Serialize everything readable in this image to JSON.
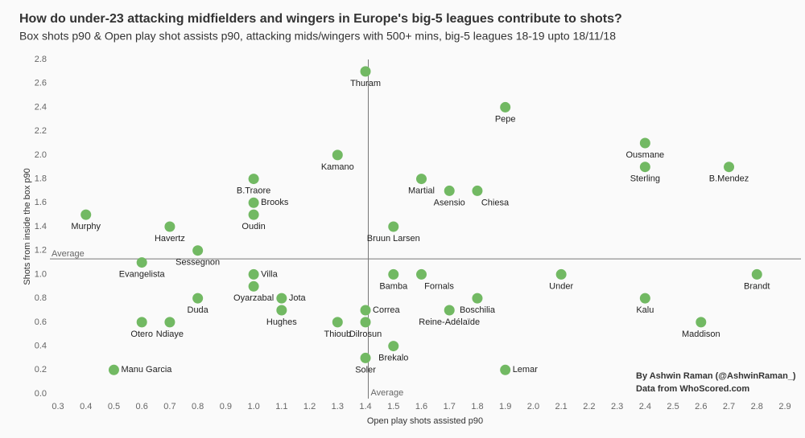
{
  "chart_data": {
    "type": "scatter",
    "title": "How do under-23 attacking midfielders and wingers in Europe's big-5 leagues contribute to shots?",
    "subtitle": "Box shots p90 & Open play shot assists p90, attacking mids/wingers with 500+ mins, big-5 leagues 18-19 upto 18/11/18",
    "x_label": "Open play shots assisted p90",
    "y_label": "Shots from inside the box p90",
    "color": "#72b963",
    "labels": [
      "Thuram",
      "Pepe",
      "Ousmane",
      "Sterling",
      "B.Mendez",
      "Kamano",
      "B.Traore",
      "Martial",
      "Asensio",
      "Chiesa",
      "Brooks",
      "Oudin",
      "Murphy",
      "Havertz",
      "Bruun Larsen",
      "Sessegnon",
      "Evangelista",
      "Villa",
      "Oyarzabal",
      "Bamba",
      "Fornals",
      "Under",
      "Brandt",
      "Duda",
      "Jota",
      "Hughes",
      "Boschilia",
      "Kalu",
      "Correa",
      "Reine-Adélaïde",
      "Otero",
      "Ndiaye",
      "Thioub",
      "Dilrosun",
      "Maddison",
      "Brekalo",
      "Soler",
      "Manu Garcia",
      "Lemar"
    ],
    "x": [
      1.4,
      1.9,
      2.4,
      2.4,
      2.7,
      1.3,
      1.0,
      1.6,
      1.7,
      1.8,
      1.0,
      1.0,
      0.4,
      0.7,
      1.5,
      0.8,
      0.6,
      1.0,
      1.0,
      1.5,
      1.6,
      2.1,
      2.8,
      0.8,
      1.1,
      1.1,
      1.8,
      2.4,
      1.4,
      1.7,
      0.6,
      0.7,
      1.3,
      1.4,
      2.6,
      1.5,
      1.4,
      0.5,
      1.9
    ],
    "values": [
      2.7,
      2.4,
      2.1,
      1.9,
      1.9,
      2.0,
      1.8,
      1.8,
      1.7,
      1.7,
      1.6,
      1.5,
      1.5,
      1.4,
      1.4,
      1.2,
      1.1,
      1.0,
      0.9,
      1.0,
      1.0,
      1.0,
      1.0,
      0.8,
      0.8,
      0.7,
      0.8,
      0.8,
      0.7,
      0.7,
      0.6,
      0.6,
      0.6,
      0.6,
      0.6,
      0.4,
      0.3,
      0.2,
      0.2
    ],
    "xlim": [
      0.3,
      2.9
    ],
    "ylim": [
      0,
      2.8
    ],
    "xticks": [
      0.3,
      0.4,
      0.5,
      0.6,
      0.7,
      0.8,
      0.9,
      {
        "value": 1,
        "label": "1.0"
      },
      1.1,
      1.2,
      1.3,
      1.4,
      1.5,
      1.6,
      1.7,
      1.8,
      1.9,
      {
        "value": 2,
        "label": "2.0"
      },
      2.1,
      2.2,
      2.3,
      2.4,
      2.5,
      2.6,
      2.7,
      2.8,
      2.9
    ],
    "yticks": [
      {
        "value": 0,
        "label": "0.0"
      },
      0.2,
      0.4,
      0.6,
      0.8,
      {
        "value": 1,
        "label": "1.0"
      },
      1.2,
      1.4,
      1.6,
      1.8,
      {
        "value": 2,
        "label": "2.0"
      },
      2.2,
      2.4,
      2.6,
      2.8
    ],
    "reference_lines": [
      {
        "axis": "x",
        "value": 1.41,
        "label": "Average"
      },
      {
        "axis": "y",
        "value": 1.13,
        "label": "Average"
      }
    ],
    "credits": [
      "By Ashwin Raman (@AshwinRaman_)",
      "Data from WhoScored.com"
    ]
  }
}
